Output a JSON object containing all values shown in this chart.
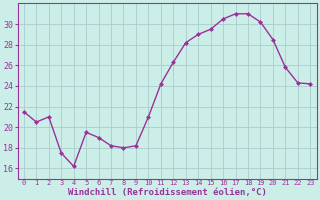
{
  "x": [
    0,
    1,
    2,
    3,
    4,
    5,
    6,
    7,
    8,
    9,
    10,
    11,
    12,
    13,
    14,
    15,
    16,
    17,
    18,
    19,
    20,
    21,
    22,
    23
  ],
  "y": [
    21.5,
    20.5,
    21.0,
    17.5,
    16.2,
    19.5,
    19.0,
    18.2,
    18.0,
    18.2,
    21.0,
    24.2,
    26.3,
    28.2,
    29.0,
    29.5,
    30.5,
    31.0,
    31.0,
    30.2,
    28.5,
    25.8,
    24.3,
    24.2
  ],
  "line_color": "#993399",
  "marker_color": "#993399",
  "bg_color": "#cceee8",
  "grid_color": "#aacccc",
  "xlabel": "Windchill (Refroidissement éolien,°C)",
  "xlabel_color": "#993399",
  "tick_color": "#993399",
  "ylim": [
    15,
    32
  ],
  "yticks": [
    16,
    18,
    20,
    22,
    24,
    26,
    28,
    30
  ],
  "xlim": [
    -0.5,
    23.5
  ],
  "spine_color": "#993399"
}
